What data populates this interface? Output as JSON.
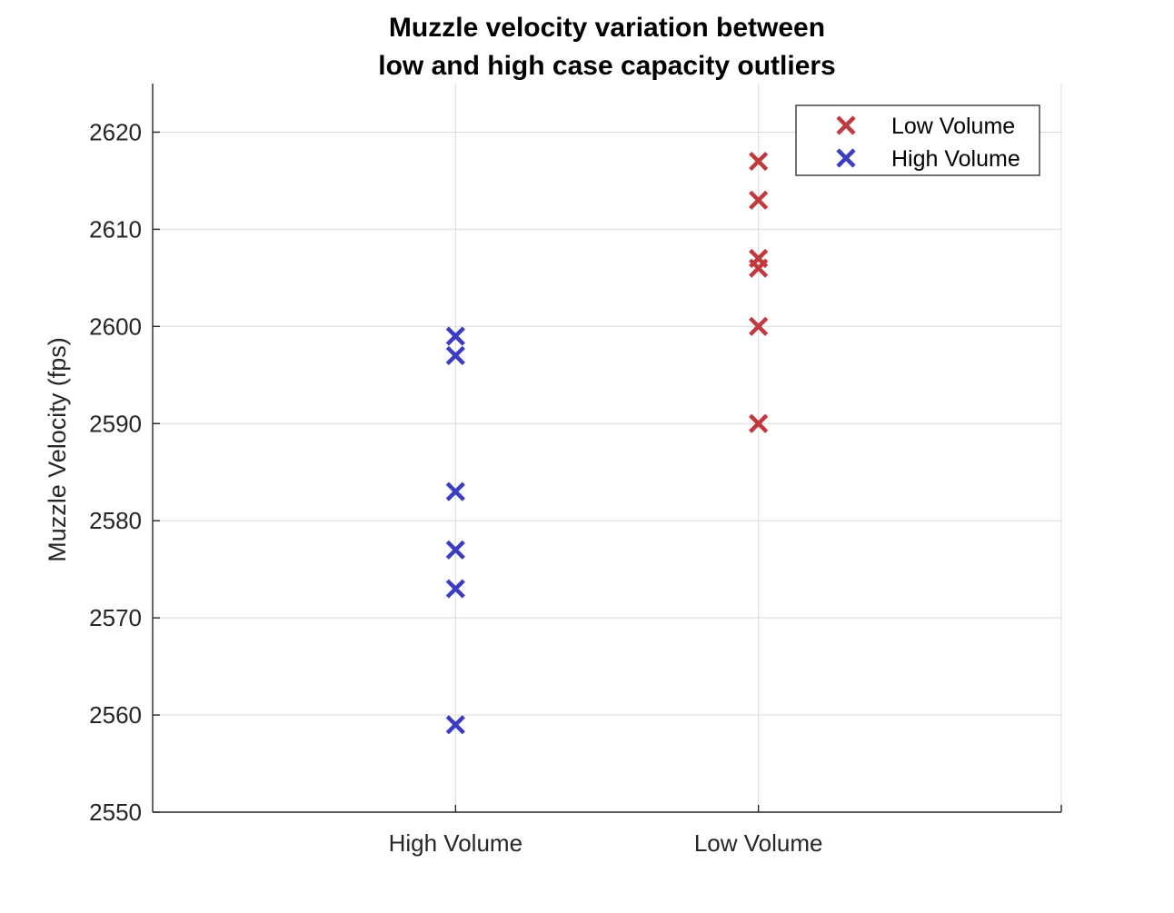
{
  "chart_data": {
    "type": "scatter",
    "title": [
      "Muzzle velocity variation between",
      "low and high case capacity outliers"
    ],
    "xlabel": "",
    "ylabel": "Muzzle Velocity (fps)",
    "categories": [
      "High Volume",
      "Low Volume"
    ],
    "xlim": [
      0,
      3
    ],
    "ylim": [
      2550,
      2625
    ],
    "yticks": [
      2550,
      2560,
      2570,
      2580,
      2590,
      2600,
      2610,
      2620
    ],
    "grid": true,
    "legend_position": "top-right",
    "series": [
      {
        "name": "Low Volume",
        "color": "#c0393e",
        "marker": "x",
        "points": [
          {
            "x": "Low Volume",
            "y": 2617
          },
          {
            "x": "Low Volume",
            "y": 2613
          },
          {
            "x": "Low Volume",
            "y": 2607
          },
          {
            "x": "Low Volume",
            "y": 2606
          },
          {
            "x": "Low Volume",
            "y": 2600
          },
          {
            "x": "Low Volume",
            "y": 2590
          }
        ]
      },
      {
        "name": "High Volume",
        "color": "#3a3dbf",
        "marker": "x",
        "points": [
          {
            "x": "High Volume",
            "y": 2599
          },
          {
            "x": "High Volume",
            "y": 2597
          },
          {
            "x": "High Volume",
            "y": 2583
          },
          {
            "x": "High Volume",
            "y": 2577
          },
          {
            "x": "High Volume",
            "y": 2573
          },
          {
            "x": "High Volume",
            "y": 2559
          }
        ]
      }
    ]
  }
}
